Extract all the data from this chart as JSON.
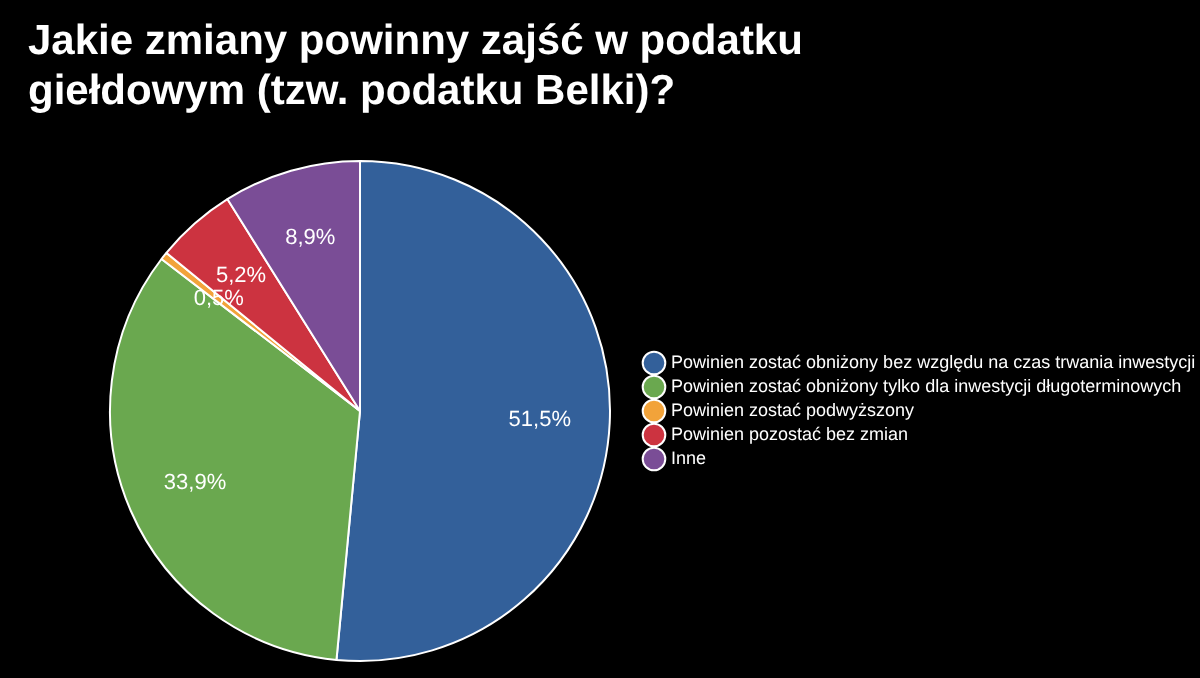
{
  "chart_data": {
    "type": "pie",
    "title": "Jakie zmiany powinny zajść w podatku giełdowym (tzw. podatku Belki)?",
    "categories": [
      "Powinien zostać obniżony bez względu na czas trwania inwestycji",
      "Powinien zostać obniżony tylko dla inwestycji długoterminowych",
      "Powinien zostać podwyższony",
      "Powinien pozostać bez zmian",
      "Inne"
    ],
    "values": [
      51.5,
      33.9,
      0.5,
      5.2,
      8.9
    ],
    "colors": [
      "#33609a",
      "#6aa84f",
      "#f2a33a",
      "#cc3340",
      "#7a4d96"
    ],
    "value_labels": [
      "51,5%",
      "33,9%",
      "0,5%",
      "5,2%",
      "8,9%"
    ],
    "legend": "right"
  }
}
